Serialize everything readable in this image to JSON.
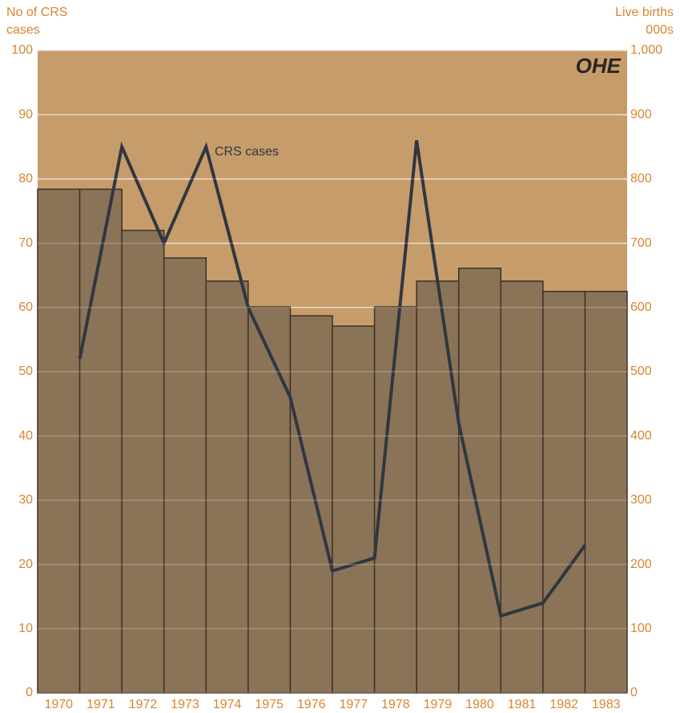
{
  "chart_data": {
    "type": "bar",
    "ylabel": [
      "No of CRS",
      "cases"
    ],
    "y2label": [
      "Live births",
      "000s"
    ],
    "logo": "OHE",
    "annotation": "CRS cases",
    "categories": [
      "1970",
      "1971",
      "1972",
      "1973",
      "1974",
      "1975",
      "1976",
      "1977",
      "1978",
      "1979",
      "1980",
      "1981",
      "1982",
      "1983"
    ],
    "series": [
      {
        "type": "bar",
        "axis": "y2",
        "color": "#8b7358",
        "values": [
          784,
          784,
          720,
          677,
          641,
          601,
          587,
          571,
          601,
          641,
          661,
          641,
          625,
          625
        ]
      },
      {
        "type": "line",
        "name": "CRS cases",
        "axis": "y",
        "color": "#2f3740",
        "values": [
          52,
          85,
          70,
          85,
          60,
          46,
          19,
          21,
          86,
          42,
          12,
          14,
          23,
          null
        ]
      }
    ],
    "ylim": [
      0,
      100
    ],
    "yticks": [
      0,
      10,
      20,
      30,
      40,
      50,
      60,
      70,
      80,
      90,
      100
    ],
    "y2lim": [
      0,
      1000
    ],
    "y2ticks": [
      0,
      100,
      200,
      300,
      400,
      500,
      600,
      700,
      800,
      900,
      {
        "value": 1000,
        "label": "1,000"
      }
    ],
    "grid": true,
    "background": "#c79c6b"
  }
}
